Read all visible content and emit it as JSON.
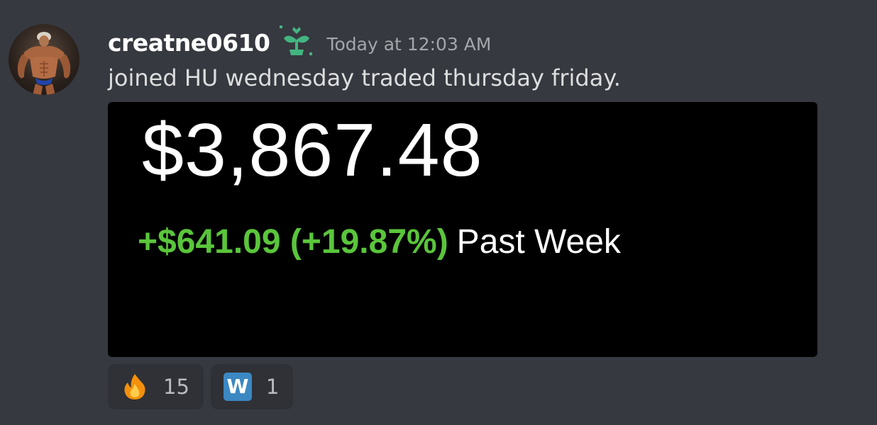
{
  "message": {
    "author": "creatne0610",
    "timestamp": "Today at 12:03 AM",
    "text": "joined HU wednesday traded thursday friday.",
    "badge_icon": "sprout-badge-icon",
    "avatar_icon": "bodybuilder-avatar"
  },
  "attachment": {
    "balance": "$3,867.48",
    "change": "+$641.09 (+19.87%)",
    "period": "Past Week",
    "colors": {
      "background": "#000000",
      "gain": "#5ac53b",
      "text": "#ffffff"
    }
  },
  "reactions": [
    {
      "emoji": "fire-emoji",
      "count": "15"
    },
    {
      "emoji": "w-letter-emoji",
      "label": "W",
      "count": "1"
    }
  ],
  "colors": {
    "background": "#36393f",
    "username": "#ffffff",
    "timestamp": "#a3a6aa",
    "message_text": "#dcddde",
    "reaction_bg": "#2f3136",
    "badge_green": "#43b581"
  }
}
